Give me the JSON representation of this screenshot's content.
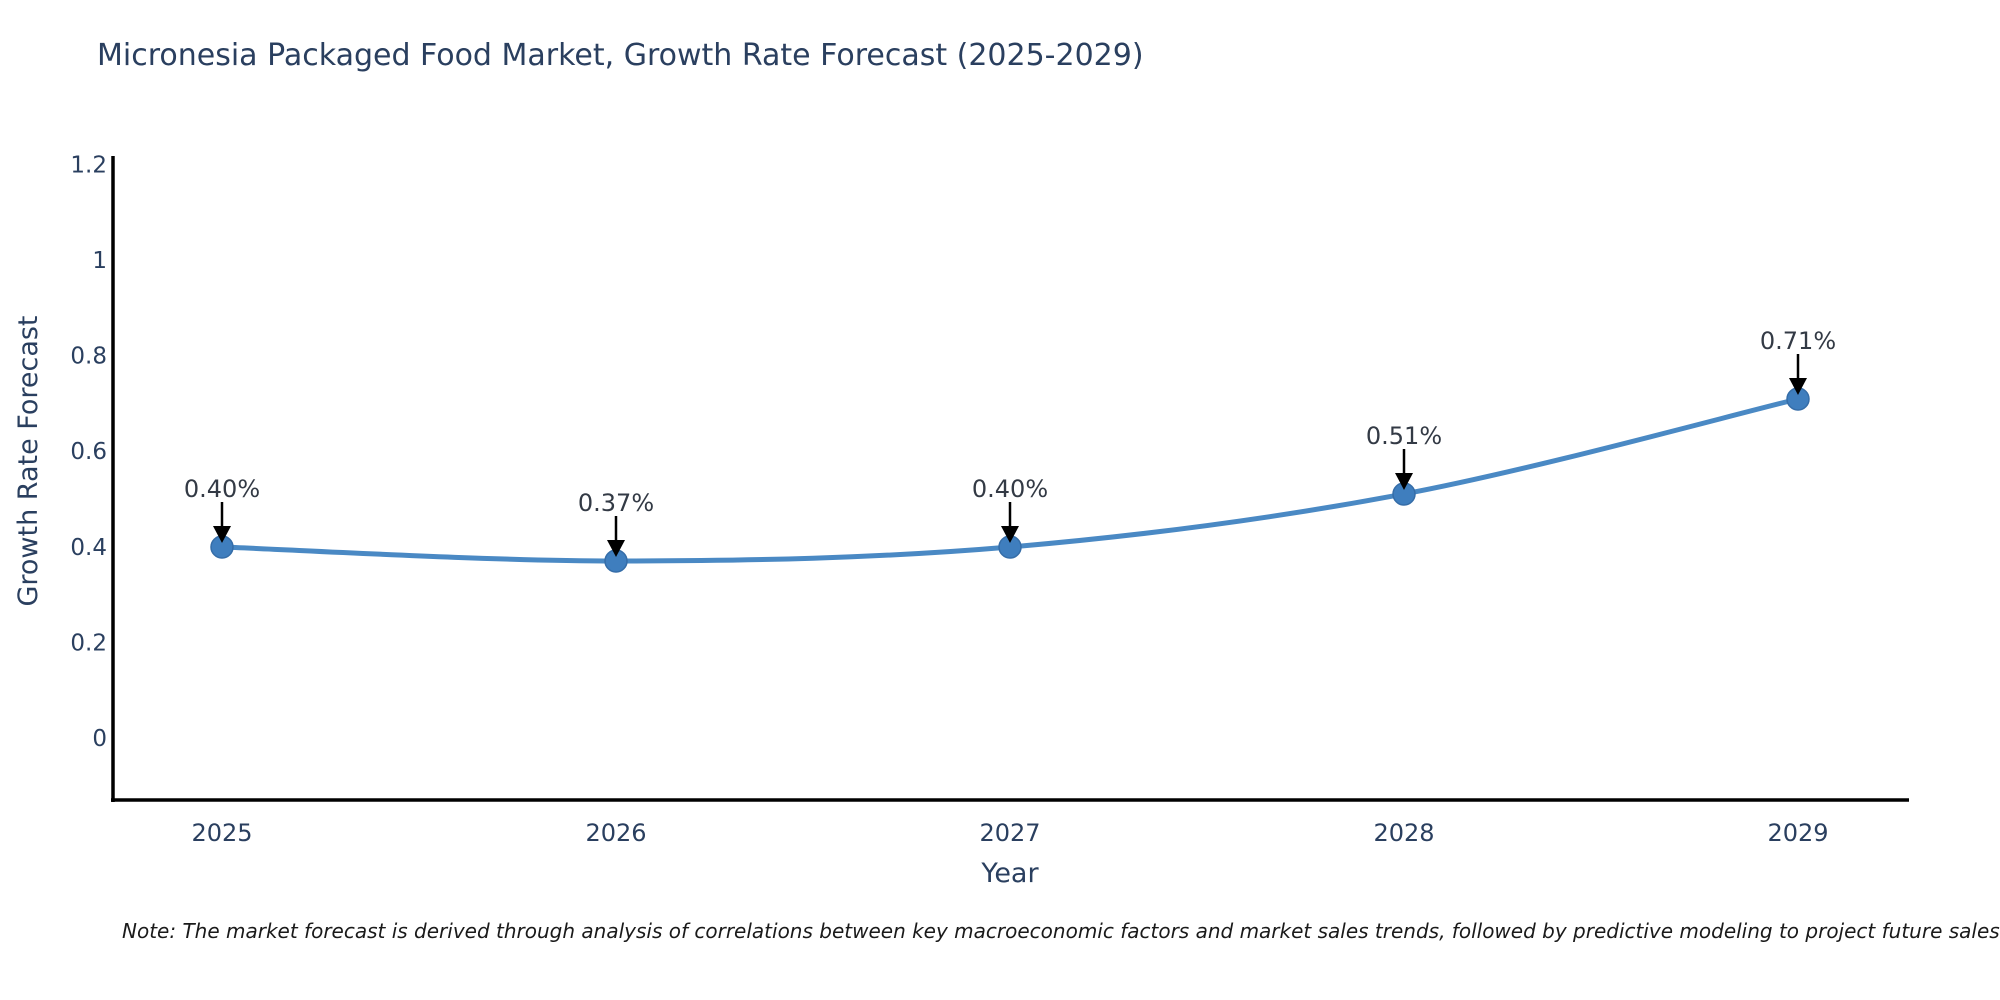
{
  "title": "Micronesia Packaged Food Market, Growth Rate Forecast (2025-2029)",
  "note": "Note: The market forecast is derived through analysis of correlations between key macroeconomic factors and market sales trends, followed by predictive modeling to project future sales",
  "chart_data": {
    "type": "line",
    "title": "Micronesia Packaged Food Market, Growth Rate Forecast (2025-2029)",
    "xlabel": "Year",
    "ylabel": "Growth Rate Forecast",
    "categories": [
      "2025",
      "2026",
      "2027",
      "2028",
      "2029"
    ],
    "values": [
      0.4,
      0.37,
      0.4,
      0.51,
      0.71
    ],
    "point_labels": [
      "0.40%",
      "0.37%",
      "0.40%",
      "0.51%",
      "0.71%"
    ],
    "ytick_labels": [
      "1.2",
      "1",
      "0.8",
      "0.6",
      "0.4",
      "0.2",
      "0"
    ],
    "ytick_values": [
      1.2,
      1.0,
      0.8,
      0.6,
      0.4,
      0.2,
      0
    ],
    "ylim": [
      -0.13,
      1.26
    ],
    "grid": false,
    "legend": "none",
    "line_shape": "spline",
    "colors": {
      "line": "#4a89c4",
      "marker": "#3f7ebe",
      "marker_edge": "#356da8",
      "axis": "#000000",
      "tick_text": "#2a3f5f",
      "annotation_text": "#333a45",
      "annotation_arrow": "#000000",
      "title_text": "#2a3f5f",
      "background": "#ffffff"
    }
  }
}
